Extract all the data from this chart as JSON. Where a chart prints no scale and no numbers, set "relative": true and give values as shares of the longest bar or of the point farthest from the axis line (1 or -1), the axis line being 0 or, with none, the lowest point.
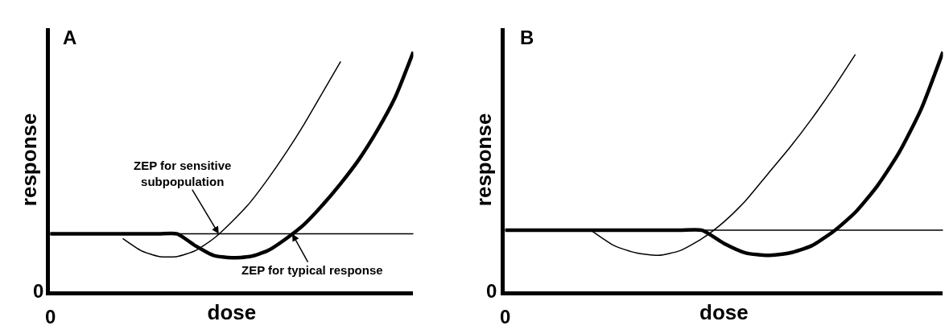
{
  "chart_data": [
    {
      "type": "line",
      "title": "A",
      "xlabel": "dose",
      "ylabel": "response",
      "relative": true,
      "categories": [
        null,
        null,
        null,
        null,
        null,
        null,
        null,
        null,
        null,
        null,
        null,
        null,
        null,
        null,
        null,
        null,
        null,
        null,
        null,
        null,
        null
      ],
      "series": [
        {
          "color": "#000000",
          "values": [
            null,
            null,
            null,
            null,
            0.22,
            0.17,
            0.145,
            0.145,
            0.17,
            0.22,
            0.29,
            0.37,
            0.47,
            0.58,
            0.7,
            0.83,
            0.96,
            null,
            null,
            null,
            null
          ]
        },
        {
          "color": "#000000",
          "values": [
            0.24,
            0.24,
            0.24,
            0.24,
            0.24,
            0.24,
            0.24,
            0.24,
            0.19,
            0.15,
            0.14,
            0.145,
            0.17,
            0.22,
            0.28,
            0.36,
            0.45,
            0.55,
            0.67,
            0.81,
            1
          ]
        }
      ],
      "ref_lines": [
        {
          "axis": "y",
          "value": 0.24,
          "color": "#000000"
        }
      ],
      "annotations": [
        "0",
        "0",
        "ZEP for sensitive\nsubpopulation",
        "ZEP for typical response"
      ]
    },
    {
      "type": "line",
      "title": "B",
      "xlabel": "dose",
      "ylabel": "response",
      "relative": true,
      "categories": [
        null,
        null,
        null,
        null,
        null,
        null,
        null,
        null,
        null,
        null,
        null,
        null,
        null,
        null,
        null,
        null,
        null,
        null,
        null,
        null,
        null
      ],
      "series": [
        {
          "color": "#000000",
          "values": [
            null,
            null,
            null,
            null,
            0.25,
            0.19,
            0.16,
            0.15,
            0.17,
            0.22,
            0.29,
            0.38,
            0.49,
            0.6,
            0.72,
            0.85,
            0.99,
            null,
            null,
            null,
            null
          ]
        },
        {
          "color": "#000000",
          "values": [
            0.255,
            0.255,
            0.255,
            0.255,
            0.255,
            0.255,
            0.255,
            0.255,
            0.255,
            0.255,
            0.2,
            0.16,
            0.15,
            0.16,
            0.19,
            0.25,
            0.33,
            0.44,
            0.58,
            0.76,
            1
          ]
        }
      ],
      "ref_lines": [
        {
          "axis": "y",
          "value": 0.255,
          "color": "#000000"
        }
      ],
      "annotations": [
        "0",
        "0"
      ]
    }
  ]
}
